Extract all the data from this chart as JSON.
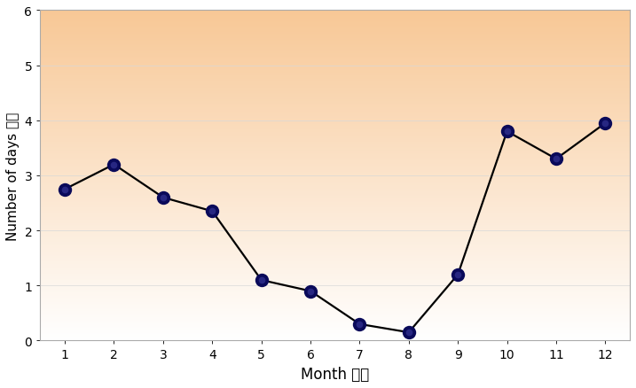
{
  "months": [
    1,
    2,
    3,
    4,
    5,
    6,
    7,
    8,
    9,
    10,
    11,
    12
  ],
  "values": [
    2.75,
    3.2,
    2.6,
    2.35,
    1.1,
    0.9,
    0.3,
    0.15,
    1.2,
    3.8,
    3.3,
    3.95
  ],
  "ylim": [
    0,
    6
  ],
  "xlim": [
    0.5,
    12.5
  ],
  "yticks": [
    0,
    1,
    2,
    3,
    4,
    5,
    6
  ],
  "xticks": [
    1,
    2,
    3,
    4,
    5,
    6,
    7,
    8,
    9,
    10,
    11,
    12
  ],
  "xlabel": "Month 月份",
  "ylabel": "Number of days 日數",
  "line_color": "#000000",
  "marker_color": "#0a0a5a",
  "marker_size": 7,
  "line_width": 1.6,
  "bg_color_top": "#f8c896",
  "bg_color_bottom": "#ffffff",
  "xlabel_fontsize": 12,
  "ylabel_fontsize": 11,
  "tick_fontsize": 10,
  "grid_color": "#d8d8d8",
  "grid_linewidth": 0.5,
  "figure_bg": "#ffffff",
  "spine_color": "#aaaaaa"
}
